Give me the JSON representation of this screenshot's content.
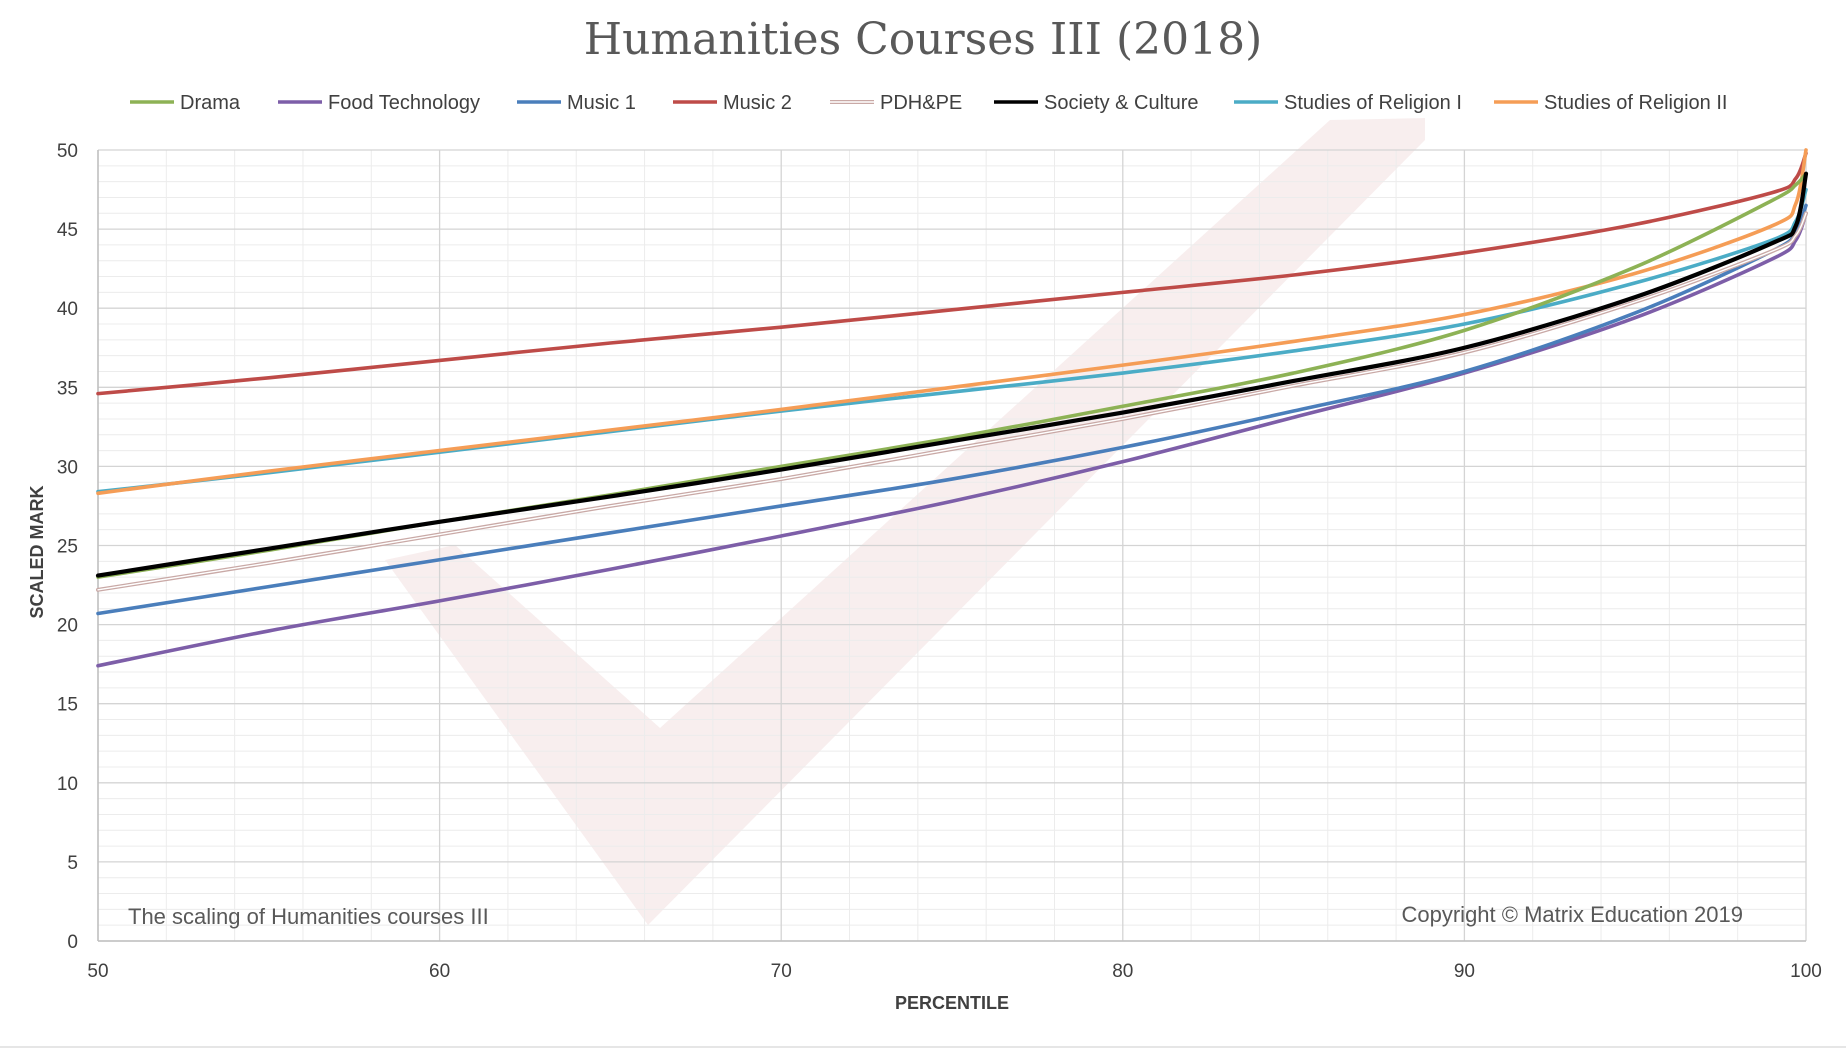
{
  "chart_data": {
    "type": "line",
    "title": "Humanities Courses III (2018)",
    "xlabel": "PERCENTILE",
    "ylabel": "SCALED MARK",
    "xlim": [
      50,
      100
    ],
    "ylim": [
      0,
      50
    ],
    "x_ticks": [
      "50",
      "60",
      "70",
      "80",
      "90",
      "100"
    ],
    "y_ticks": [
      "0",
      "5",
      "10",
      "15",
      "20",
      "25",
      "30",
      "35",
      "40",
      "45",
      "50"
    ],
    "grid": true,
    "legend_position": "top",
    "annotations": {
      "left": "The scaling of Humanities courses III",
      "right": "Copyright © Matrix Education 2019"
    },
    "series": [
      {
        "name": "Drama",
        "color": "#8db255",
        "x": [
          50,
          55,
          60,
          65,
          70,
          75,
          80,
          85,
          90,
          95,
          99,
          99.7,
          100
        ],
        "values": [
          23.0,
          24.7,
          26.5,
          28.2,
          30.0,
          31.8,
          33.8,
          35.9,
          38.6,
          42.6,
          46.8,
          47.8,
          48.5
        ]
      },
      {
        "name": "Food Technology",
        "color": "#7d5ea8",
        "x": [
          50,
          55,
          60,
          65,
          70,
          75,
          80,
          85,
          90,
          95,
          99,
          99.7,
          100
        ],
        "values": [
          17.4,
          19.6,
          21.5,
          23.5,
          25.6,
          27.8,
          30.3,
          33.1,
          35.9,
          39.4,
          43.1,
          44.3,
          46.0
        ]
      },
      {
        "name": "Music 1",
        "color": "#4a7ebb",
        "x": [
          50,
          55,
          60,
          65,
          70,
          75,
          80,
          85,
          90,
          95,
          99,
          99.7,
          100
        ],
        "values": [
          20.7,
          22.4,
          24.1,
          25.8,
          27.5,
          29.2,
          31.2,
          33.5,
          36.0,
          39.7,
          43.6,
          44.8,
          46.5
        ]
      },
      {
        "name": "Music 2",
        "color": "#be4b48",
        "x": [
          50,
          55,
          60,
          65,
          70,
          75,
          80,
          85,
          90,
          95,
          99,
          99.7,
          100
        ],
        "values": [
          34.6,
          35.6,
          36.7,
          37.8,
          38.8,
          39.9,
          41.0,
          42.1,
          43.5,
          45.3,
          47.3,
          48.2,
          49.8
        ]
      },
      {
        "name": "PDH&PE",
        "color": "#c9a9a6",
        "x": [
          50,
          55,
          60,
          65,
          70,
          75,
          80,
          85,
          90,
          95,
          99,
          99.7,
          100
        ],
        "values": [
          22.2,
          23.9,
          25.7,
          27.5,
          29.2,
          31.1,
          33.0,
          35.1,
          37.2,
          40.4,
          43.6,
          44.6,
          46.0
        ]
      },
      {
        "name": "Society & Culture",
        "color": "#000000",
        "x": [
          50,
          55,
          60,
          65,
          70,
          75,
          80,
          85,
          90,
          95,
          99,
          99.7,
          100
        ],
        "values": [
          23.1,
          24.8,
          26.5,
          28.1,
          29.8,
          31.6,
          33.4,
          35.4,
          37.5,
          40.7,
          44.1,
          45.2,
          48.5
        ]
      },
      {
        "name": "Studies of Religion I",
        "color": "#4bacc6",
        "x": [
          50,
          55,
          60,
          65,
          70,
          75,
          80,
          85,
          90,
          95,
          99,
          99.7,
          100
        ],
        "values": [
          28.4,
          29.6,
          30.9,
          32.2,
          33.5,
          34.7,
          35.9,
          37.3,
          39.0,
          41.6,
          44.3,
          45.5,
          47.5
        ]
      },
      {
        "name": "Studies of Religion II",
        "color": "#f59d56",
        "x": [
          50,
          55,
          60,
          65,
          70,
          75,
          80,
          85,
          90,
          95,
          99,
          99.7,
          100
        ],
        "values": [
          28.3,
          29.7,
          31.0,
          32.3,
          33.6,
          35.0,
          36.4,
          37.9,
          39.6,
          42.2,
          45.2,
          46.6,
          50.0
        ]
      }
    ]
  }
}
